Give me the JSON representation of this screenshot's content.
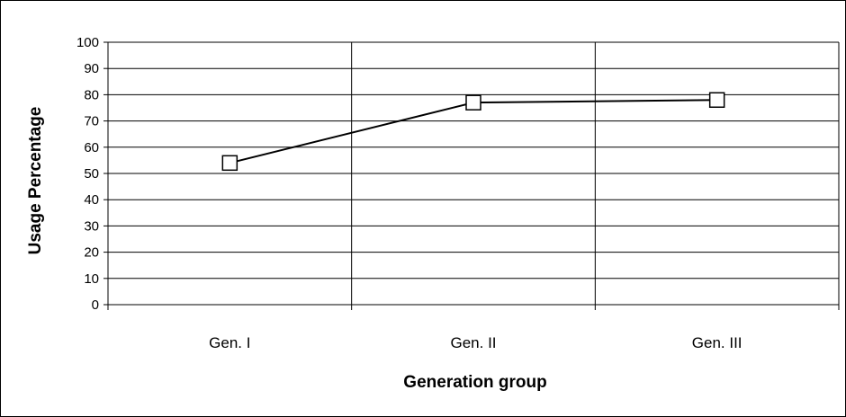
{
  "chart_data": {
    "type": "line",
    "categories": [
      "Gen. I",
      "Gen. II",
      "Gen. III"
    ],
    "series": [
      {
        "values": [
          54,
          77,
          78
        ]
      }
    ],
    "xlabel": "Generation group",
    "ylabel": "Usage Percentage",
    "ylim": [
      0,
      100
    ],
    "yticks": [
      0,
      10,
      20,
      30,
      40,
      50,
      60,
      70,
      80,
      90,
      100
    ],
    "grid": true,
    "marker": "open-square",
    "line_color": "#000000"
  }
}
